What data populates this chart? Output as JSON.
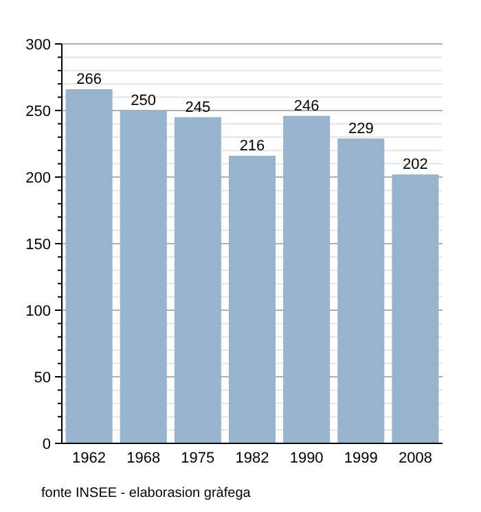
{
  "chart_data": {
    "type": "bar",
    "categories": [
      "1962",
      "1968",
      "1975",
      "1982",
      "1990",
      "1999",
      "2008"
    ],
    "values": [
      266,
      250,
      245,
      216,
      246,
      229,
      202
    ],
    "color": "#9ab3cc",
    "data_labels": true,
    "grid": "y",
    "ylim": [
      0,
      300
    ],
    "yticks": [
      0,
      {
        "value": 10,
        "label": null
      },
      {
        "value": 20,
        "label": null
      },
      {
        "value": 30,
        "label": null
      },
      {
        "value": 40,
        "label": null
      },
      50,
      {
        "value": 60,
        "label": null
      },
      {
        "value": 70,
        "label": null
      },
      {
        "value": 80,
        "label": null
      },
      {
        "value": 90,
        "label": null
      },
      100,
      {
        "value": 110,
        "label": null
      },
      {
        "value": 120,
        "label": null
      },
      {
        "value": 130,
        "label": null
      },
      {
        "value": 140,
        "label": null
      },
      150,
      {
        "value": 160,
        "label": null
      },
      {
        "value": 170,
        "label": null
      },
      {
        "value": 180,
        "label": null
      },
      {
        "value": 190,
        "label": null
      },
      200,
      {
        "value": 210,
        "label": null
      },
      {
        "value": 220,
        "label": null
      },
      {
        "value": 230,
        "label": null
      },
      {
        "value": 240,
        "label": null
      },
      250,
      {
        "value": 260,
        "label": null
      },
      {
        "value": 270,
        "label": null
      },
      {
        "value": 280,
        "label": null
      },
      {
        "value": 290,
        "label": null
      },
      300
    ],
    "annotations": [
      "fonte INSEE - elaborasion gràfega"
    ]
  }
}
